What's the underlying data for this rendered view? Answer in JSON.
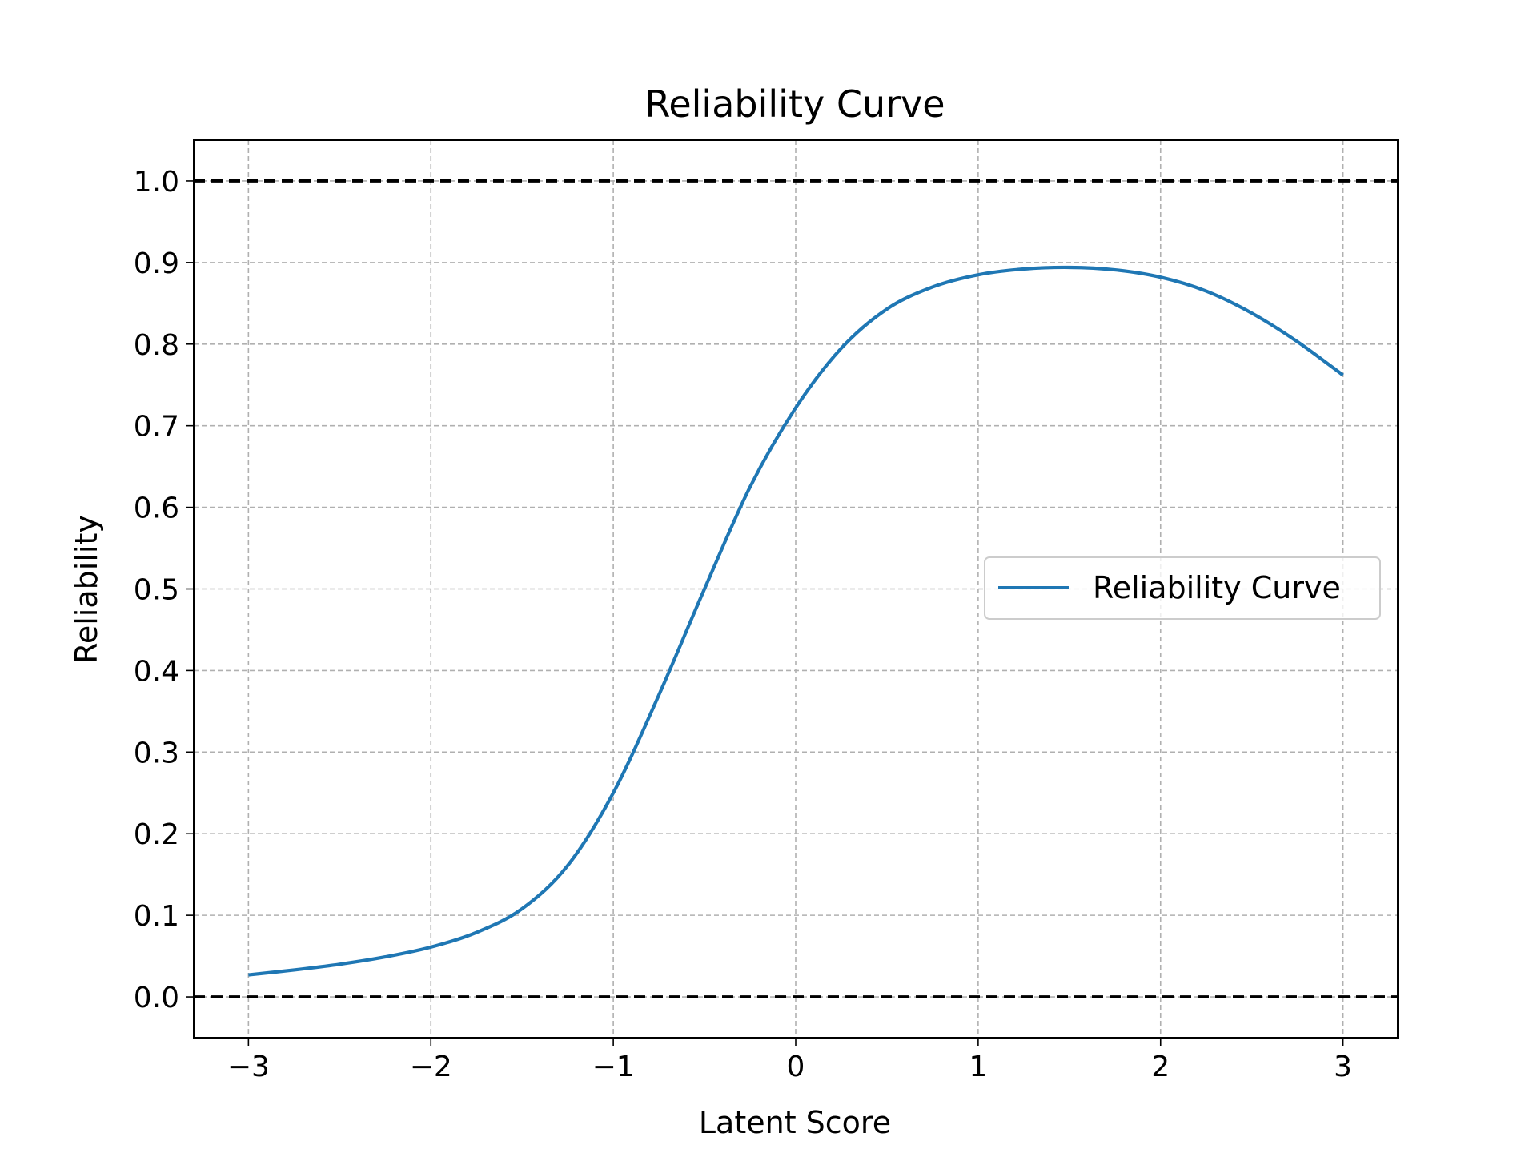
{
  "chart_data": {
    "type": "line",
    "title": "Reliability Curve",
    "xlabel": "Latent Score",
    "ylabel": "Reliability",
    "xlim": [
      -3.3,
      3.3
    ],
    "ylim": [
      -0.05,
      1.05
    ],
    "xticks": [
      -3,
      -2,
      -1,
      0,
      1,
      2,
      3
    ],
    "xtick_labels": [
      "−3",
      "−2",
      "−1",
      "0",
      "1",
      "2",
      "3"
    ],
    "yticks": [
      0.0,
      0.1,
      0.2,
      0.3,
      0.4,
      0.5,
      0.6,
      0.7,
      0.8,
      0.9,
      1.0
    ],
    "ytick_labels": [
      "0.0",
      "0.1",
      "0.2",
      "0.3",
      "0.4",
      "0.5",
      "0.6",
      "0.7",
      "0.8",
      "0.9",
      "1.0"
    ],
    "grid": true,
    "legend_position": "center-right",
    "reference_lines": [
      {
        "y": 1.0,
        "color": "#000000",
        "style": "dashed"
      },
      {
        "y": 0.0,
        "color": "#000000",
        "style": "dashed"
      }
    ],
    "series": [
      {
        "name": "Reliability Curve",
        "color": "#1f77b4",
        "x": [
          -3.0,
          -2.75,
          -2.5,
          -2.25,
          -2.0,
          -1.75,
          -1.5,
          -1.25,
          -1.0,
          -0.75,
          -0.5,
          -0.25,
          0.0,
          0.25,
          0.5,
          0.75,
          1.0,
          1.25,
          1.5,
          1.75,
          2.0,
          2.25,
          2.5,
          2.75,
          3.0
        ],
        "y": [
          0.027,
          0.033,
          0.04,
          0.049,
          0.061,
          0.079,
          0.108,
          0.161,
          0.25,
          0.37,
          0.5,
          0.625,
          0.722,
          0.795,
          0.843,
          0.87,
          0.885,
          0.892,
          0.894,
          0.891,
          0.882,
          0.865,
          0.838,
          0.803,
          0.762
        ]
      }
    ]
  }
}
